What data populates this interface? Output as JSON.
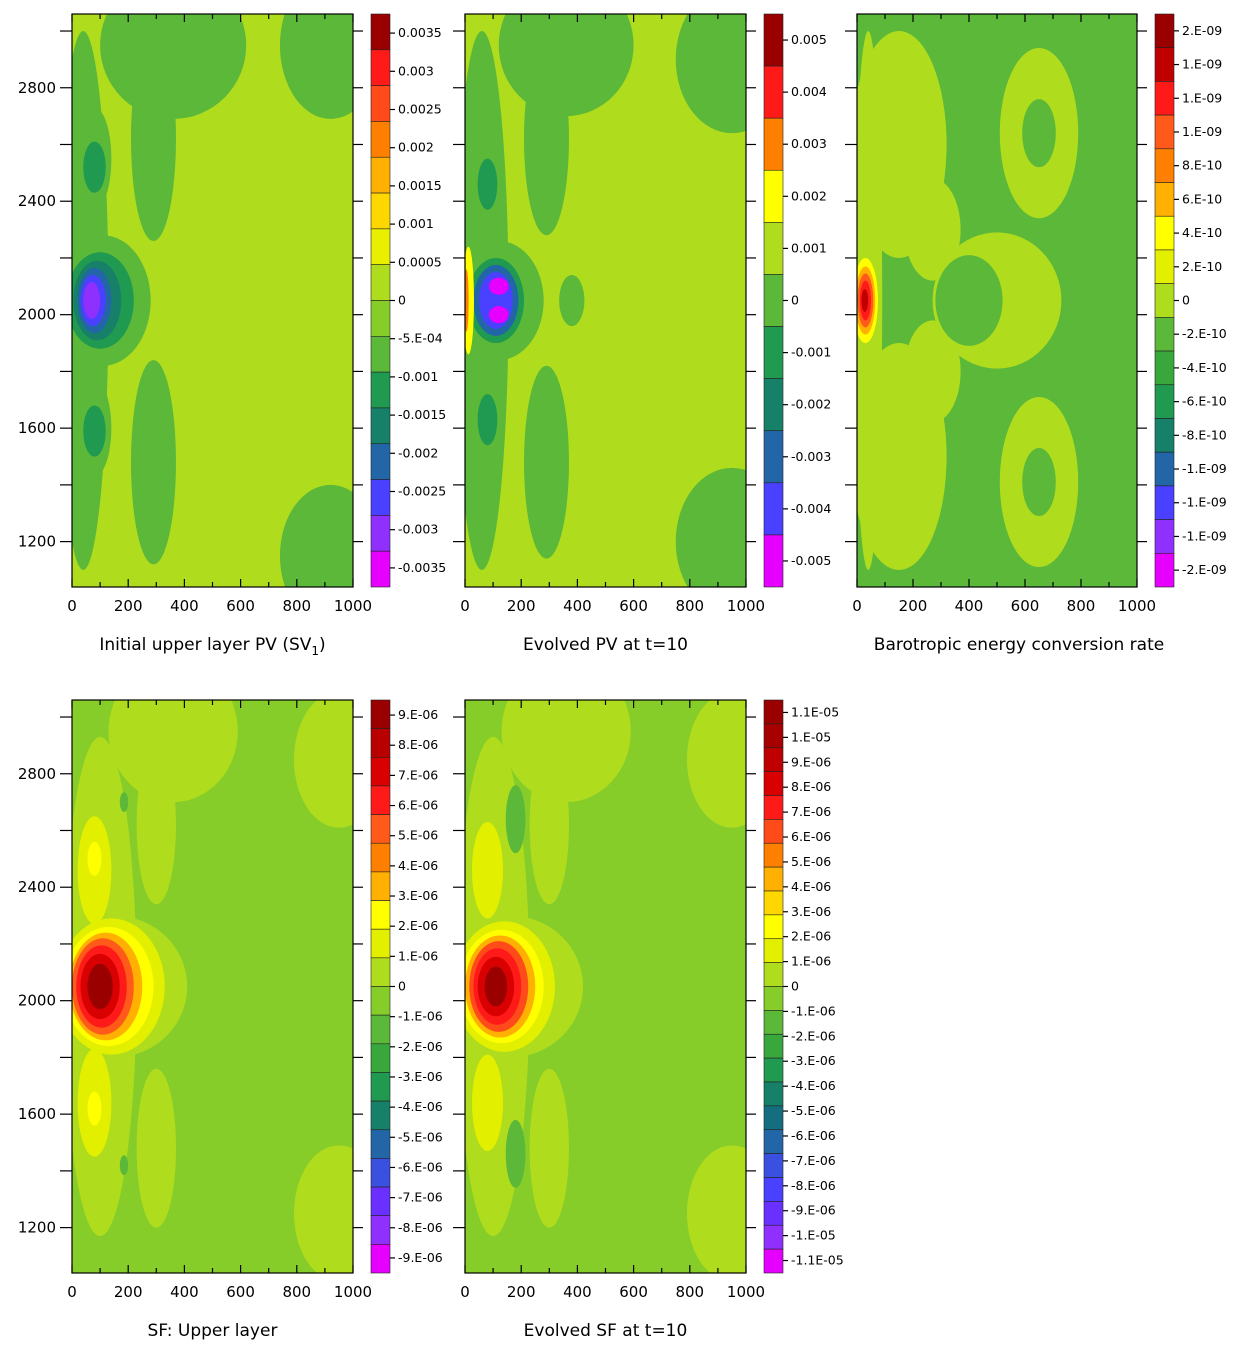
{
  "chart_data": [
    {
      "type": "heatmap",
      "title": "Initial upper layer PV (SV",
      "title_sub": "1",
      "title_suffix": ")",
      "xlim": [
        0,
        1000
      ],
      "ylim": [
        1040,
        3060
      ],
      "x_ticks": [
        0,
        200,
        400,
        600,
        800,
        1000
      ],
      "y_ticks": [
        1200,
        1600,
        2000,
        2400,
        2800
      ],
      "show_y_labels": true,
      "colorbar_labels": [
        "0.0035",
        "0.003",
        "0.0025",
        "0.002",
        "0.0015",
        "0.001",
        "0.0005",
        "0",
        "-5.E-04",
        "-0.001",
        "-0.0015",
        "-0.002",
        "-0.0025",
        "-0.003",
        "-0.0035"
      ],
      "colorbar_colors": [
        "#9b0000",
        "#ff1a1a",
        "#ff4a1a",
        "#ff8000",
        "#ffb000",
        "#ffd700",
        "#e8f000",
        "#b0dc1e",
        "#86cd2a",
        "#5bb838",
        "#1f9a50",
        "#178068",
        "#2266a8",
        "#4a40ff",
        "#9030ff",
        "#e600ff"
      ],
      "background": "#b0dc1e",
      "blobs": [
        {
          "x": 360,
          "y": 2950,
          "rx": 260,
          "ry": 260,
          "c": "#5bb838"
        },
        {
          "x": 40,
          "y": 2050,
          "rx": 90,
          "ry": 950,
          "c": "#5bb838"
        },
        {
          "x": 110,
          "y": 2050,
          "rx": 170,
          "ry": 230,
          "c": "#5bb838"
        },
        {
          "x": 80,
          "y": 2550,
          "rx": 60,
          "ry": 180,
          "c": "#5bb838"
        },
        {
          "x": 80,
          "y": 1600,
          "rx": 60,
          "ry": 170,
          "c": "#5bb838"
        },
        {
          "x": 290,
          "y": 2620,
          "rx": 80,
          "ry": 360,
          "c": "#5bb838"
        },
        {
          "x": 290,
          "y": 1480,
          "rx": 80,
          "ry": 360,
          "c": "#5bb838"
        },
        {
          "x": 920,
          "y": 2950,
          "rx": 180,
          "ry": 260,
          "c": "#5bb838"
        },
        {
          "x": 920,
          "y": 1150,
          "rx": 180,
          "ry": 250,
          "c": "#5bb838"
        },
        {
          "x": 80,
          "y": 2520,
          "rx": 40,
          "ry": 90,
          "c": "#1f9a50"
        },
        {
          "x": 80,
          "y": 1590,
          "rx": 40,
          "ry": 90,
          "c": "#1f9a50"
        },
        {
          "x": 100,
          "y": 2050,
          "rx": 120,
          "ry": 170,
          "c": "#1f9a50"
        },
        {
          "x": 90,
          "y": 2050,
          "rx": 85,
          "ry": 140,
          "c": "#178068"
        },
        {
          "x": 80,
          "y": 2050,
          "rx": 60,
          "ry": 115,
          "c": "#2266a8"
        },
        {
          "x": 75,
          "y": 2050,
          "rx": 45,
          "ry": 90,
          "c": "#4a40ff"
        },
        {
          "x": 70,
          "y": 2050,
          "rx": 30,
          "ry": 65,
          "c": "#9030ff"
        }
      ]
    },
    {
      "type": "heatmap",
      "title": "Evolved PV at t=10",
      "xlim": [
        0,
        1000
      ],
      "ylim": [
        1040,
        3060
      ],
      "x_ticks": [
        0,
        200,
        400,
        600,
        800,
        1000
      ],
      "y_ticks": [
        1200,
        1600,
        2000,
        2400,
        2800
      ],
      "show_y_labels": false,
      "colorbar_labels": [
        "0.005",
        "0.004",
        "0.003",
        "0.002",
        "0.001",
        "0",
        "-0.001",
        "-0.002",
        "-0.003",
        "-0.004",
        "-0.005"
      ],
      "colorbar_colors": [
        "#9b0000",
        "#ff1a1a",
        "#ff8000",
        "#ffff00",
        "#b0dc1e",
        "#5bb838",
        "#1f9a50",
        "#178068",
        "#2266a8",
        "#4a40ff",
        "#e600ff"
      ],
      "background": "#b0dc1e",
      "blobs": [
        {
          "x": 360,
          "y": 2950,
          "rx": 240,
          "ry": 250,
          "c": "#5bb838"
        },
        {
          "x": 950,
          "y": 2900,
          "rx": 200,
          "ry": 260,
          "c": "#5bb838"
        },
        {
          "x": 950,
          "y": 1200,
          "rx": 200,
          "ry": 260,
          "c": "#5bb838"
        },
        {
          "x": 290,
          "y": 2620,
          "rx": 80,
          "ry": 340,
          "c": "#5bb838"
        },
        {
          "x": 290,
          "y": 1480,
          "rx": 80,
          "ry": 340,
          "c": "#5bb838"
        },
        {
          "x": 60,
          "y": 2050,
          "rx": 95,
          "ry": 950,
          "c": "#5bb838"
        },
        {
          "x": 120,
          "y": 2050,
          "rx": 160,
          "ry": 210,
          "c": "#5bb838"
        },
        {
          "x": 380,
          "y": 2050,
          "rx": 45,
          "ry": 90,
          "c": "#5bb838"
        },
        {
          "x": 80,
          "y": 2460,
          "rx": 35,
          "ry": 90,
          "c": "#1f9a50"
        },
        {
          "x": 80,
          "y": 1630,
          "rx": 35,
          "ry": 90,
          "c": "#1f9a50"
        },
        {
          "x": 110,
          "y": 2050,
          "rx": 100,
          "ry": 150,
          "c": "#1f9a50"
        },
        {
          "x": 110,
          "y": 2050,
          "rx": 80,
          "ry": 125,
          "c": "#2266a8"
        },
        {
          "x": 110,
          "y": 2050,
          "rx": 60,
          "ry": 100,
          "c": "#4a40ff"
        },
        {
          "x": 120,
          "y": 2100,
          "rx": 35,
          "ry": 30,
          "c": "#e600ff"
        },
        {
          "x": 120,
          "y": 2000,
          "rx": 35,
          "ry": 30,
          "c": "#e600ff"
        },
        {
          "x": 12,
          "y": 2050,
          "rx": 20,
          "ry": 190,
          "c": "#ffff00"
        },
        {
          "x": 5,
          "y": 2050,
          "rx": 8,
          "ry": 110,
          "c": "#ff8000"
        }
      ]
    },
    {
      "type": "heatmap",
      "title": "Barotropic energy conversion rate",
      "xlim": [
        0,
        1000
      ],
      "ylim": [
        1040,
        3060
      ],
      "x_ticks": [
        0,
        200,
        400,
        600,
        800,
        1000
      ],
      "y_ticks": [
        1200,
        1600,
        2000,
        2400,
        2800
      ],
      "show_y_labels": false,
      "colorbar_labels": [
        "2.E-09",
        "1.E-09",
        "1.E-09",
        "1.E-09",
        "8.E-10",
        "6.E-10",
        "4.E-10",
        "2.E-10",
        "0",
        "-2.E-10",
        "-4.E-10",
        "-6.E-10",
        "-8.E-10",
        "-1.E-09",
        "-1.E-09",
        "-1.E-09",
        "-2.E-09"
      ],
      "colorbar_colors": [
        "#9b0000",
        "#c00000",
        "#ff1a1a",
        "#ff5a1a",
        "#ff8000",
        "#ffb000",
        "#ffff00",
        "#e2f000",
        "#b0dc1e",
        "#5bb838",
        "#38a83c",
        "#1f9a50",
        "#178068",
        "#2266a8",
        "#4a40ff",
        "#9030ff",
        "#e600ff"
      ],
      "background": "#5bb838",
      "blobs": [
        {
          "x": 150,
          "y": 2600,
          "rx": 170,
          "ry": 400,
          "c": "#b0dc1e"
        },
        {
          "x": 150,
          "y": 1500,
          "rx": 170,
          "ry": 400,
          "c": "#b0dc1e"
        },
        {
          "x": 500,
          "y": 2050,
          "rx": 230,
          "ry": 240,
          "c": "#b0dc1e"
        },
        {
          "x": 650,
          "y": 2640,
          "rx": 140,
          "ry": 300,
          "c": "#b0dc1e"
        },
        {
          "x": 650,
          "y": 1410,
          "rx": 140,
          "ry": 300,
          "c": "#b0dc1e"
        },
        {
          "x": 40,
          "y": 2050,
          "rx": 50,
          "ry": 950,
          "c": "#b0dc1e"
        },
        {
          "x": 270,
          "y": 2300,
          "rx": 100,
          "ry": 180,
          "c": "#b0dc1e"
        },
        {
          "x": 270,
          "y": 1800,
          "rx": 100,
          "ry": 180,
          "c": "#b0dc1e"
        },
        {
          "x": 400,
          "y": 2050,
          "rx": 120,
          "ry": 160,
          "c": "#5bb838"
        },
        {
          "x": 650,
          "y": 2640,
          "rx": 60,
          "ry": 120,
          "c": "#5bb838"
        },
        {
          "x": 650,
          "y": 1410,
          "rx": 60,
          "ry": 120,
          "c": "#5bb838"
        },
        {
          "x": 30,
          "y": 2050,
          "rx": 45,
          "ry": 150,
          "c": "#ffff00"
        },
        {
          "x": 30,
          "y": 2050,
          "rx": 35,
          "ry": 120,
          "c": "#ffb000"
        },
        {
          "x": 30,
          "y": 2050,
          "rx": 28,
          "ry": 95,
          "c": "#ff5a1a"
        },
        {
          "x": 30,
          "y": 2050,
          "rx": 20,
          "ry": 70,
          "c": "#ff1a1a"
        },
        {
          "x": 28,
          "y": 2050,
          "rx": 12,
          "ry": 40,
          "c": "#c00000"
        }
      ]
    },
    {
      "type": "heatmap",
      "title": "SF: Upper layer",
      "xlim": [
        0,
        1000
      ],
      "ylim": [
        1040,
        3060
      ],
      "x_ticks": [
        0,
        200,
        400,
        600,
        800,
        1000
      ],
      "y_ticks": [
        1200,
        1600,
        2000,
        2400,
        2800
      ],
      "show_y_labels": true,
      "colorbar_labels": [
        "9.E-06",
        "8.E-06",
        "7.E-06",
        "6.E-06",
        "5.E-06",
        "4.E-06",
        "3.E-06",
        "2.E-06",
        "1.E-06",
        "0",
        "-1.E-06",
        "-2.E-06",
        "-3.E-06",
        "-4.E-06",
        "-5.E-06",
        "-6.E-06",
        "-7.E-06",
        "-8.E-06",
        "-9.E-06"
      ],
      "colorbar_colors": [
        "#9b0000",
        "#b80000",
        "#d80000",
        "#ff1a1a",
        "#ff5a1a",
        "#ff8000",
        "#ffb000",
        "#ffff00",
        "#e2f000",
        "#b0dc1e",
        "#86cd2a",
        "#5bb838",
        "#38a83c",
        "#1f9a50",
        "#178068",
        "#2266a8",
        "#3a50e0",
        "#6a30ff",
        "#9030ff",
        "#e600ff"
      ],
      "background": "#86cd2a",
      "blobs": [
        {
          "x": 360,
          "y": 2950,
          "rx": 230,
          "ry": 250,
          "c": "#b0dc1e"
        },
        {
          "x": 950,
          "y": 2850,
          "rx": 160,
          "ry": 240,
          "c": "#b0dc1e"
        },
        {
          "x": 950,
          "y": 1250,
          "rx": 160,
          "ry": 240,
          "c": "#b0dc1e"
        },
        {
          "x": 300,
          "y": 2620,
          "rx": 70,
          "ry": 280,
          "c": "#b0dc1e"
        },
        {
          "x": 300,
          "y": 1480,
          "rx": 70,
          "ry": 280,
          "c": "#b0dc1e"
        },
        {
          "x": 100,
          "y": 2050,
          "rx": 130,
          "ry": 880,
          "c": "#b0dc1e"
        },
        {
          "x": 150,
          "y": 2050,
          "rx": 260,
          "ry": 250,
          "c": "#b0dc1e"
        },
        {
          "x": 80,
          "y": 2460,
          "rx": 60,
          "ry": 190,
          "c": "#e2f000"
        },
        {
          "x": 80,
          "y": 1640,
          "rx": 60,
          "ry": 190,
          "c": "#e2f000"
        },
        {
          "x": 140,
          "y": 2050,
          "rx": 190,
          "ry": 240,
          "c": "#e2f000"
        },
        {
          "x": 80,
          "y": 2500,
          "rx": 25,
          "ry": 60,
          "c": "#ffff00"
        },
        {
          "x": 80,
          "y": 1620,
          "rx": 25,
          "ry": 60,
          "c": "#ffff00"
        },
        {
          "x": 130,
          "y": 2050,
          "rx": 160,
          "ry": 210,
          "c": "#ffff00"
        },
        {
          "x": 120,
          "y": 2050,
          "rx": 130,
          "ry": 190,
          "c": "#ffb000"
        },
        {
          "x": 110,
          "y": 2050,
          "rx": 110,
          "ry": 170,
          "c": "#ff5a1a"
        },
        {
          "x": 105,
          "y": 2050,
          "rx": 90,
          "ry": 145,
          "c": "#ff1a1a"
        },
        {
          "x": 100,
          "y": 2050,
          "rx": 70,
          "ry": 115,
          "c": "#d80000"
        },
        {
          "x": 100,
          "y": 2050,
          "rx": 45,
          "ry": 80,
          "c": "#9b0000"
        },
        {
          "x": 185,
          "y": 2700,
          "rx": 15,
          "ry": 35,
          "c": "#5bb838"
        },
        {
          "x": 185,
          "y": 1420,
          "rx": 15,
          "ry": 35,
          "c": "#5bb838"
        }
      ]
    },
    {
      "type": "heatmap",
      "title": "Evolved SF at t=10",
      "xlim": [
        0,
        1000
      ],
      "ylim": [
        1040,
        3060
      ],
      "x_ticks": [
        0,
        200,
        400,
        600,
        800,
        1000
      ],
      "y_ticks": [
        1200,
        1600,
        2000,
        2400,
        2800
      ],
      "show_y_labels": false,
      "colorbar_labels": [
        "1.1E-05",
        "1.E-05",
        "9.E-06",
        "8.E-06",
        "7.E-06",
        "6.E-06",
        "5.E-06",
        "4.E-06",
        "3.E-06",
        "2.E-06",
        "1.E-06",
        "0",
        "-1.E-06",
        "-2.E-06",
        "-3.E-06",
        "-4.E-06",
        "-5.E-06",
        "-6.E-06",
        "-7.E-06",
        "-8.E-06",
        "-9.E-06",
        "-1.E-05",
        "-1.1E-05"
      ],
      "colorbar_colors": [
        "#9b0000",
        "#a80000",
        "#c00000",
        "#d80000",
        "#ff1a1a",
        "#ff4a1a",
        "#ff8000",
        "#ffb000",
        "#ffd700",
        "#ffff00",
        "#e2f000",
        "#b0dc1e",
        "#86cd2a",
        "#5bb838",
        "#38a83c",
        "#1f9a50",
        "#178068",
        "#156e80",
        "#2266a8",
        "#3a50e0",
        "#4a40ff",
        "#6a30ff",
        "#9030ff",
        "#e600ff"
      ],
      "background": "#86cd2a",
      "blobs": [
        {
          "x": 360,
          "y": 2950,
          "rx": 230,
          "ry": 250,
          "c": "#b0dc1e"
        },
        {
          "x": 950,
          "y": 2850,
          "rx": 160,
          "ry": 240,
          "c": "#b0dc1e"
        },
        {
          "x": 950,
          "y": 1250,
          "rx": 160,
          "ry": 240,
          "c": "#b0dc1e"
        },
        {
          "x": 300,
          "y": 2620,
          "rx": 70,
          "ry": 280,
          "c": "#b0dc1e"
        },
        {
          "x": 300,
          "y": 1480,
          "rx": 70,
          "ry": 280,
          "c": "#b0dc1e"
        },
        {
          "x": 100,
          "y": 2050,
          "rx": 130,
          "ry": 880,
          "c": "#b0dc1e"
        },
        {
          "x": 160,
          "y": 2050,
          "rx": 260,
          "ry": 250,
          "c": "#b0dc1e"
        },
        {
          "x": 180,
          "y": 2640,
          "rx": 35,
          "ry": 120,
          "c": "#5bb838"
        },
        {
          "x": 180,
          "y": 1460,
          "rx": 35,
          "ry": 120,
          "c": "#5bb838"
        },
        {
          "x": 80,
          "y": 2460,
          "rx": 55,
          "ry": 170,
          "c": "#e2f000"
        },
        {
          "x": 80,
          "y": 1640,
          "rx": 55,
          "ry": 170,
          "c": "#e2f000"
        },
        {
          "x": 140,
          "y": 2050,
          "rx": 180,
          "ry": 230,
          "c": "#e2f000"
        },
        {
          "x": 130,
          "y": 2050,
          "rx": 150,
          "ry": 200,
          "c": "#ffff00"
        },
        {
          "x": 125,
          "y": 2050,
          "rx": 125,
          "ry": 180,
          "c": "#ffb000"
        },
        {
          "x": 120,
          "y": 2050,
          "rx": 105,
          "ry": 160,
          "c": "#ff4a1a"
        },
        {
          "x": 115,
          "y": 2050,
          "rx": 85,
          "ry": 135,
          "c": "#ff1a1a"
        },
        {
          "x": 110,
          "y": 2050,
          "rx": 65,
          "ry": 105,
          "c": "#d80000"
        },
        {
          "x": 110,
          "y": 2050,
          "rx": 40,
          "ry": 70,
          "c": "#9b0000"
        }
      ]
    }
  ]
}
